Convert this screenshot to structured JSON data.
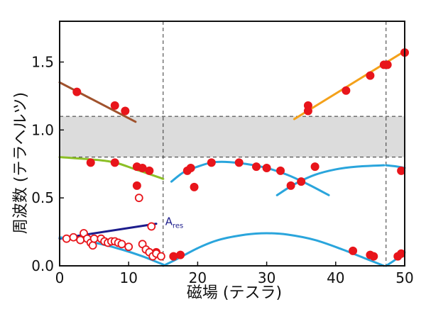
{
  "chart_data": {
    "type": "scatter",
    "title": "",
    "xlabel": "磁場 (テスラ)",
    "ylabel": "周波数 (テラヘルツ)",
    "xlim": [
      0,
      50
    ],
    "ylim": [
      0,
      1.8
    ],
    "xticks": [
      "0",
      "10",
      "20",
      "30",
      "40",
      "50"
    ],
    "yticks": [
      "0.0",
      "0.5",
      "1.0",
      "1.5"
    ],
    "grid": false,
    "gap_band": {
      "y_from": 0.8,
      "y_to": 1.1,
      "color": "#dcdcdc"
    },
    "guide_lines": {
      "vertical_x": [
        15,
        47.3
      ],
      "horizontal_y": [
        0.8,
        1.1
      ]
    },
    "annotation": {
      "text": "A",
      "subscript": "res",
      "x": 15.3,
      "y": 0.3
    },
    "lines": [
      {
        "color": "#a0522d",
        "points": [
          [
            0,
            1.35
          ],
          [
            11,
            1.06
          ]
        ]
      },
      {
        "color": "#8cbf26",
        "points": [
          [
            0,
            0.8
          ],
          [
            7,
            0.77
          ],
          [
            11,
            0.71
          ],
          [
            15,
            0.64
          ]
        ]
      },
      {
        "color": "#1c1c8c",
        "points": [
          [
            0,
            0.2
          ],
          [
            14,
            0.31
          ]
        ]
      },
      {
        "color": "#f4a11a",
        "points": [
          [
            34,
            1.08
          ],
          [
            50,
            1.58
          ]
        ]
      },
      {
        "color": "#2aa5dc",
        "points": [
          [
            0,
            0.21
          ],
          [
            3,
            0.19
          ],
          [
            6,
            0.16
          ],
          [
            9,
            0.12
          ],
          [
            12,
            0.07
          ],
          [
            14,
            0.03
          ],
          [
            15,
            0.01
          ]
        ]
      },
      {
        "color": "#2aa5dc",
        "points": [
          [
            15,
            0.0
          ],
          [
            17,
            0.05
          ],
          [
            20,
            0.13
          ],
          [
            23,
            0.19
          ],
          [
            27,
            0.23
          ],
          [
            30,
            0.24
          ],
          [
            33,
            0.23
          ],
          [
            37,
            0.19
          ],
          [
            41,
            0.12
          ],
          [
            44,
            0.06
          ],
          [
            47,
            0.0
          ]
        ]
      },
      {
        "color": "#2aa5dc",
        "points": [
          [
            47.3,
            0.0
          ],
          [
            48.5,
            0.04
          ],
          [
            50,
            0.1
          ]
        ]
      },
      {
        "color": "#2aa5dc",
        "points": [
          [
            16.2,
            0.62
          ],
          [
            18,
            0.69
          ],
          [
            20,
            0.73
          ],
          [
            22,
            0.76
          ],
          [
            24,
            0.765
          ],
          [
            27,
            0.75
          ],
          [
            30,
            0.72
          ],
          [
            33,
            0.67
          ],
          [
            36,
            0.6
          ],
          [
            39,
            0.52
          ]
        ]
      },
      {
        "color": "#2aa5dc",
        "points": [
          [
            31.5,
            0.52
          ],
          [
            34,
            0.6
          ],
          [
            37,
            0.67
          ],
          [
            40,
            0.71
          ],
          [
            43,
            0.73
          ],
          [
            47,
            0.74
          ]
        ]
      },
      {
        "color": "#2aa5dc",
        "points": [
          [
            47.3,
            0.74
          ],
          [
            49,
            0.73
          ],
          [
            50,
            0.72
          ]
        ]
      }
    ],
    "series": [
      {
        "marker": "filled",
        "color": "#e8151b",
        "x": [
          2.5,
          8,
          9.5,
          4.5,
          8,
          11.2,
          12,
          13,
          11.2,
          14,
          16.5,
          17.5,
          18.5,
          19,
          19.5,
          22,
          26,
          28.5,
          30,
          32,
          33.5,
          35,
          36,
          36,
          37,
          41.5,
          45,
          47,
          47.5,
          50,
          49.5,
          42.5,
          45,
          45.5,
          49,
          49.5
        ],
        "y": [
          1.28,
          1.18,
          1.14,
          0.76,
          0.76,
          0.73,
          0.72,
          0.7,
          0.59,
          0.1,
          0.07,
          0.08,
          0.7,
          0.72,
          0.58,
          0.76,
          0.76,
          0.73,
          0.72,
          0.7,
          0.59,
          0.62,
          1.18,
          1.14,
          0.73,
          1.29,
          1.4,
          1.48,
          1.48,
          1.57,
          0.7,
          0.11,
          0.08,
          0.07,
          0.07,
          0.09
        ]
      },
      {
        "marker": "hollow",
        "color": "#e8151b",
        "x": [
          1,
          2,
          3,
          3.5,
          4,
          4.5,
          4.8,
          5,
          6,
          6.5,
          7,
          7.5,
          8,
          8.5,
          9,
          10,
          11.5,
          12,
          12.5,
          13,
          13.5,
          14,
          13.3,
          14.7
        ],
        "y": [
          0.2,
          0.21,
          0.19,
          0.24,
          0.2,
          0.17,
          0.15,
          0.2,
          0.2,
          0.18,
          0.17,
          0.18,
          0.18,
          0.17,
          0.16,
          0.14,
          0.5,
          0.16,
          0.12,
          0.1,
          0.07,
          0.09,
          0.29,
          0.07
        ]
      }
    ]
  }
}
